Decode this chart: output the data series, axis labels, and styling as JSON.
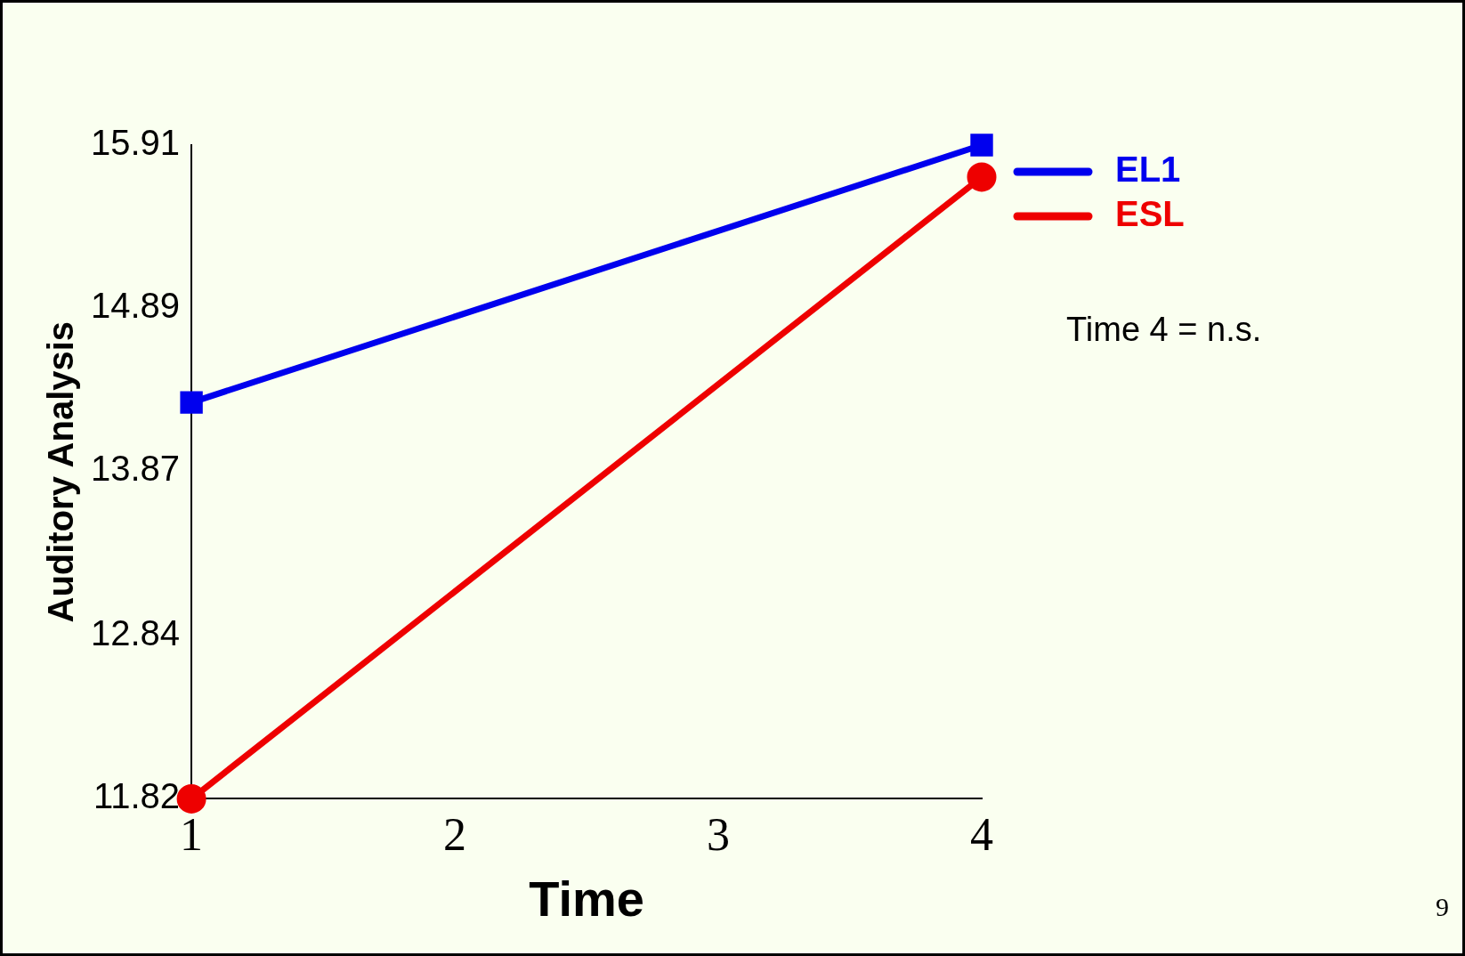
{
  "chart_data": {
    "type": "line",
    "xlabel": "Time",
    "ylabel": "Auditory Analysis",
    "x": [
      1,
      4
    ],
    "xlim": [
      1,
      4
    ],
    "xticks": [
      1,
      2,
      3,
      4
    ],
    "ylim": [
      11.82,
      15.91
    ],
    "yticks": [
      11.82,
      12.84,
      13.87,
      14.89,
      15.91
    ],
    "series": [
      {
        "name": "EL1",
        "color": "#0000ee",
        "values": [
          14.3,
          15.91
        ],
        "marker": "square"
      },
      {
        "name": "ESL",
        "color": "#ee0000",
        "values": [
          11.82,
          15.71
        ],
        "marker": "circle"
      }
    ],
    "legend": "right",
    "grid": false,
    "annotations": [
      "Time 4 = n.s.",
      "9"
    ]
  }
}
